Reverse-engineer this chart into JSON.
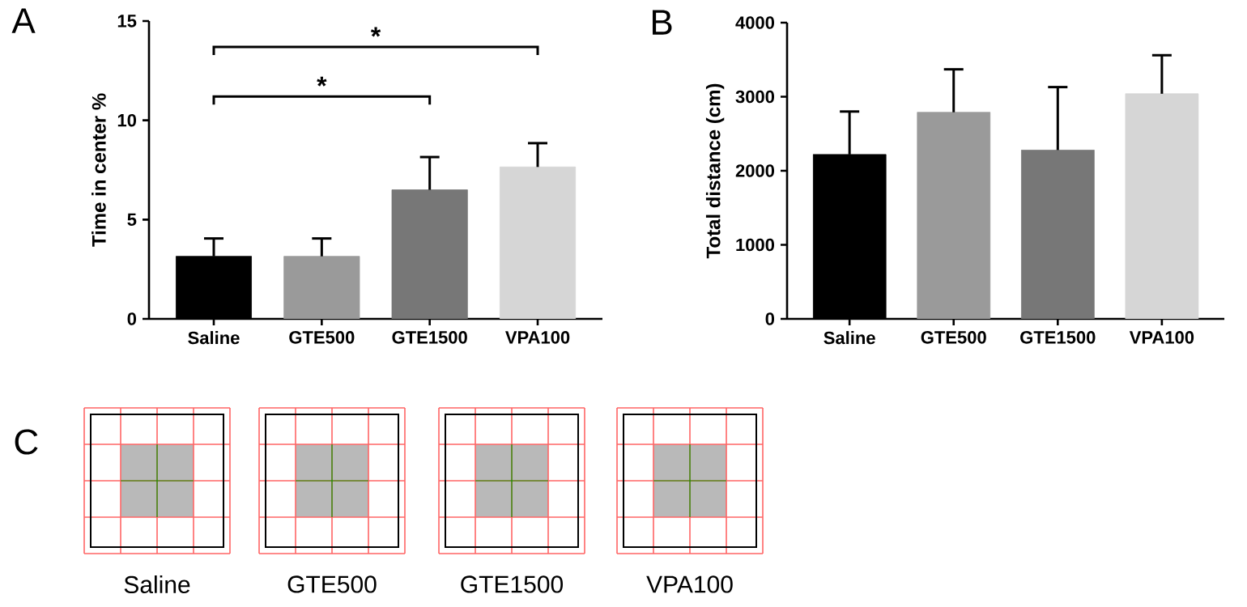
{
  "chart_data": [
    {
      "type": "bar",
      "title": "A",
      "ylabel": "Time in center %",
      "categories": [
        "Saline",
        "GTE500",
        "GTE1500",
        "VPA100"
      ],
      "values": [
        3.15,
        3.15,
        6.5,
        7.65
      ],
      "errors": [
        [
          3.15,
          4.05
        ],
        [
          3.15,
          4.05
        ],
        [
          6.5,
          8.15
        ],
        [
          7.65,
          8.85
        ]
      ],
      "colors": [
        "#000000",
        "#9a9a9a",
        "#777777",
        "#d6d6d6"
      ],
      "ylim": [
        0,
        15
      ],
      "yticks": [
        0,
        5,
        10,
        15
      ],
      "grid": false,
      "annotations": [
        "*",
        "*"
      ]
    },
    {
      "type": "bar",
      "title": "B",
      "ylabel": "Total distance (cm)",
      "categories": [
        "Saline",
        "GTE500",
        "GTE1500",
        "VPA100"
      ],
      "values": [
        2220,
        2790,
        2280,
        3040
      ],
      "errors": [
        [
          2220,
          2800
        ],
        [
          2790,
          3370
        ],
        [
          2280,
          3130
        ],
        [
          3040,
          3560
        ]
      ],
      "colors": [
        "#000000",
        "#9a9a9a",
        "#777777",
        "#d6d6d6"
      ],
      "ylim": [
        0,
        4000
      ],
      "yticks": [
        0,
        1000,
        2000,
        3000,
        4000
      ],
      "grid": false
    },
    {
      "type": "other",
      "title": "C",
      "annotations": [
        "Saline",
        "GTE500",
        "GTE1500",
        "VPA100"
      ]
    }
  ]
}
